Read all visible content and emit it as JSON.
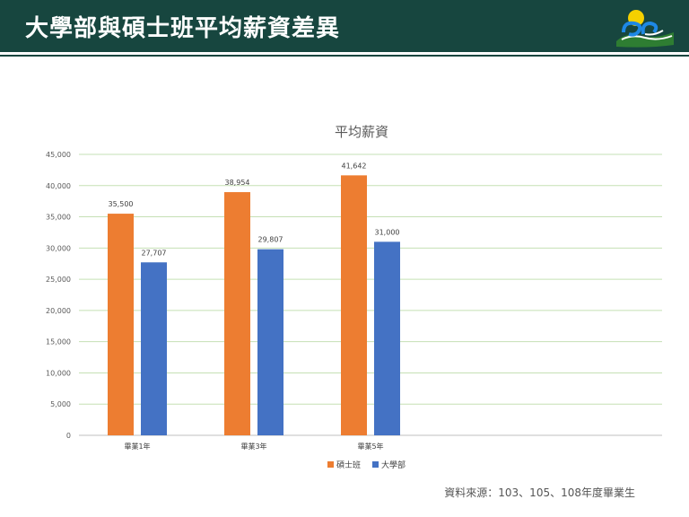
{
  "header": {
    "title": "大學部與碩士班平均薪資差異"
  },
  "source_note": "資料來源：103、105、108年度畢業生",
  "colors": {
    "header_bg": "#17463f",
    "masters": "#ed7d31",
    "bachelor": "#4472c4",
    "grid": "#c5e0b4"
  },
  "chart_data": {
    "type": "bar",
    "title": "平均薪資",
    "categories": [
      "畢業1年",
      "畢業3年",
      "畢業5年"
    ],
    "series": [
      {
        "name": "碩士班",
        "color": "#ed7d31",
        "values": [
          35500,
          38954,
          41642
        ]
      },
      {
        "name": "大學部",
        "color": "#4472c4",
        "values": [
          27707,
          29807,
          31000
        ]
      }
    ],
    "value_labels": [
      [
        "35,500",
        "38,954",
        "41,642"
      ],
      [
        "27,707",
        "29,807",
        "31,000"
      ]
    ],
    "yticks": [
      "0",
      "5,000",
      "10,000",
      "15,000",
      "20,000",
      "25,000",
      "30,000",
      "35,000",
      "40,000",
      "45,000"
    ],
    "ylim": [
      0,
      45000
    ],
    "grid": true,
    "legend": "bottom-center",
    "xlabel": "",
    "ylabel": ""
  }
}
